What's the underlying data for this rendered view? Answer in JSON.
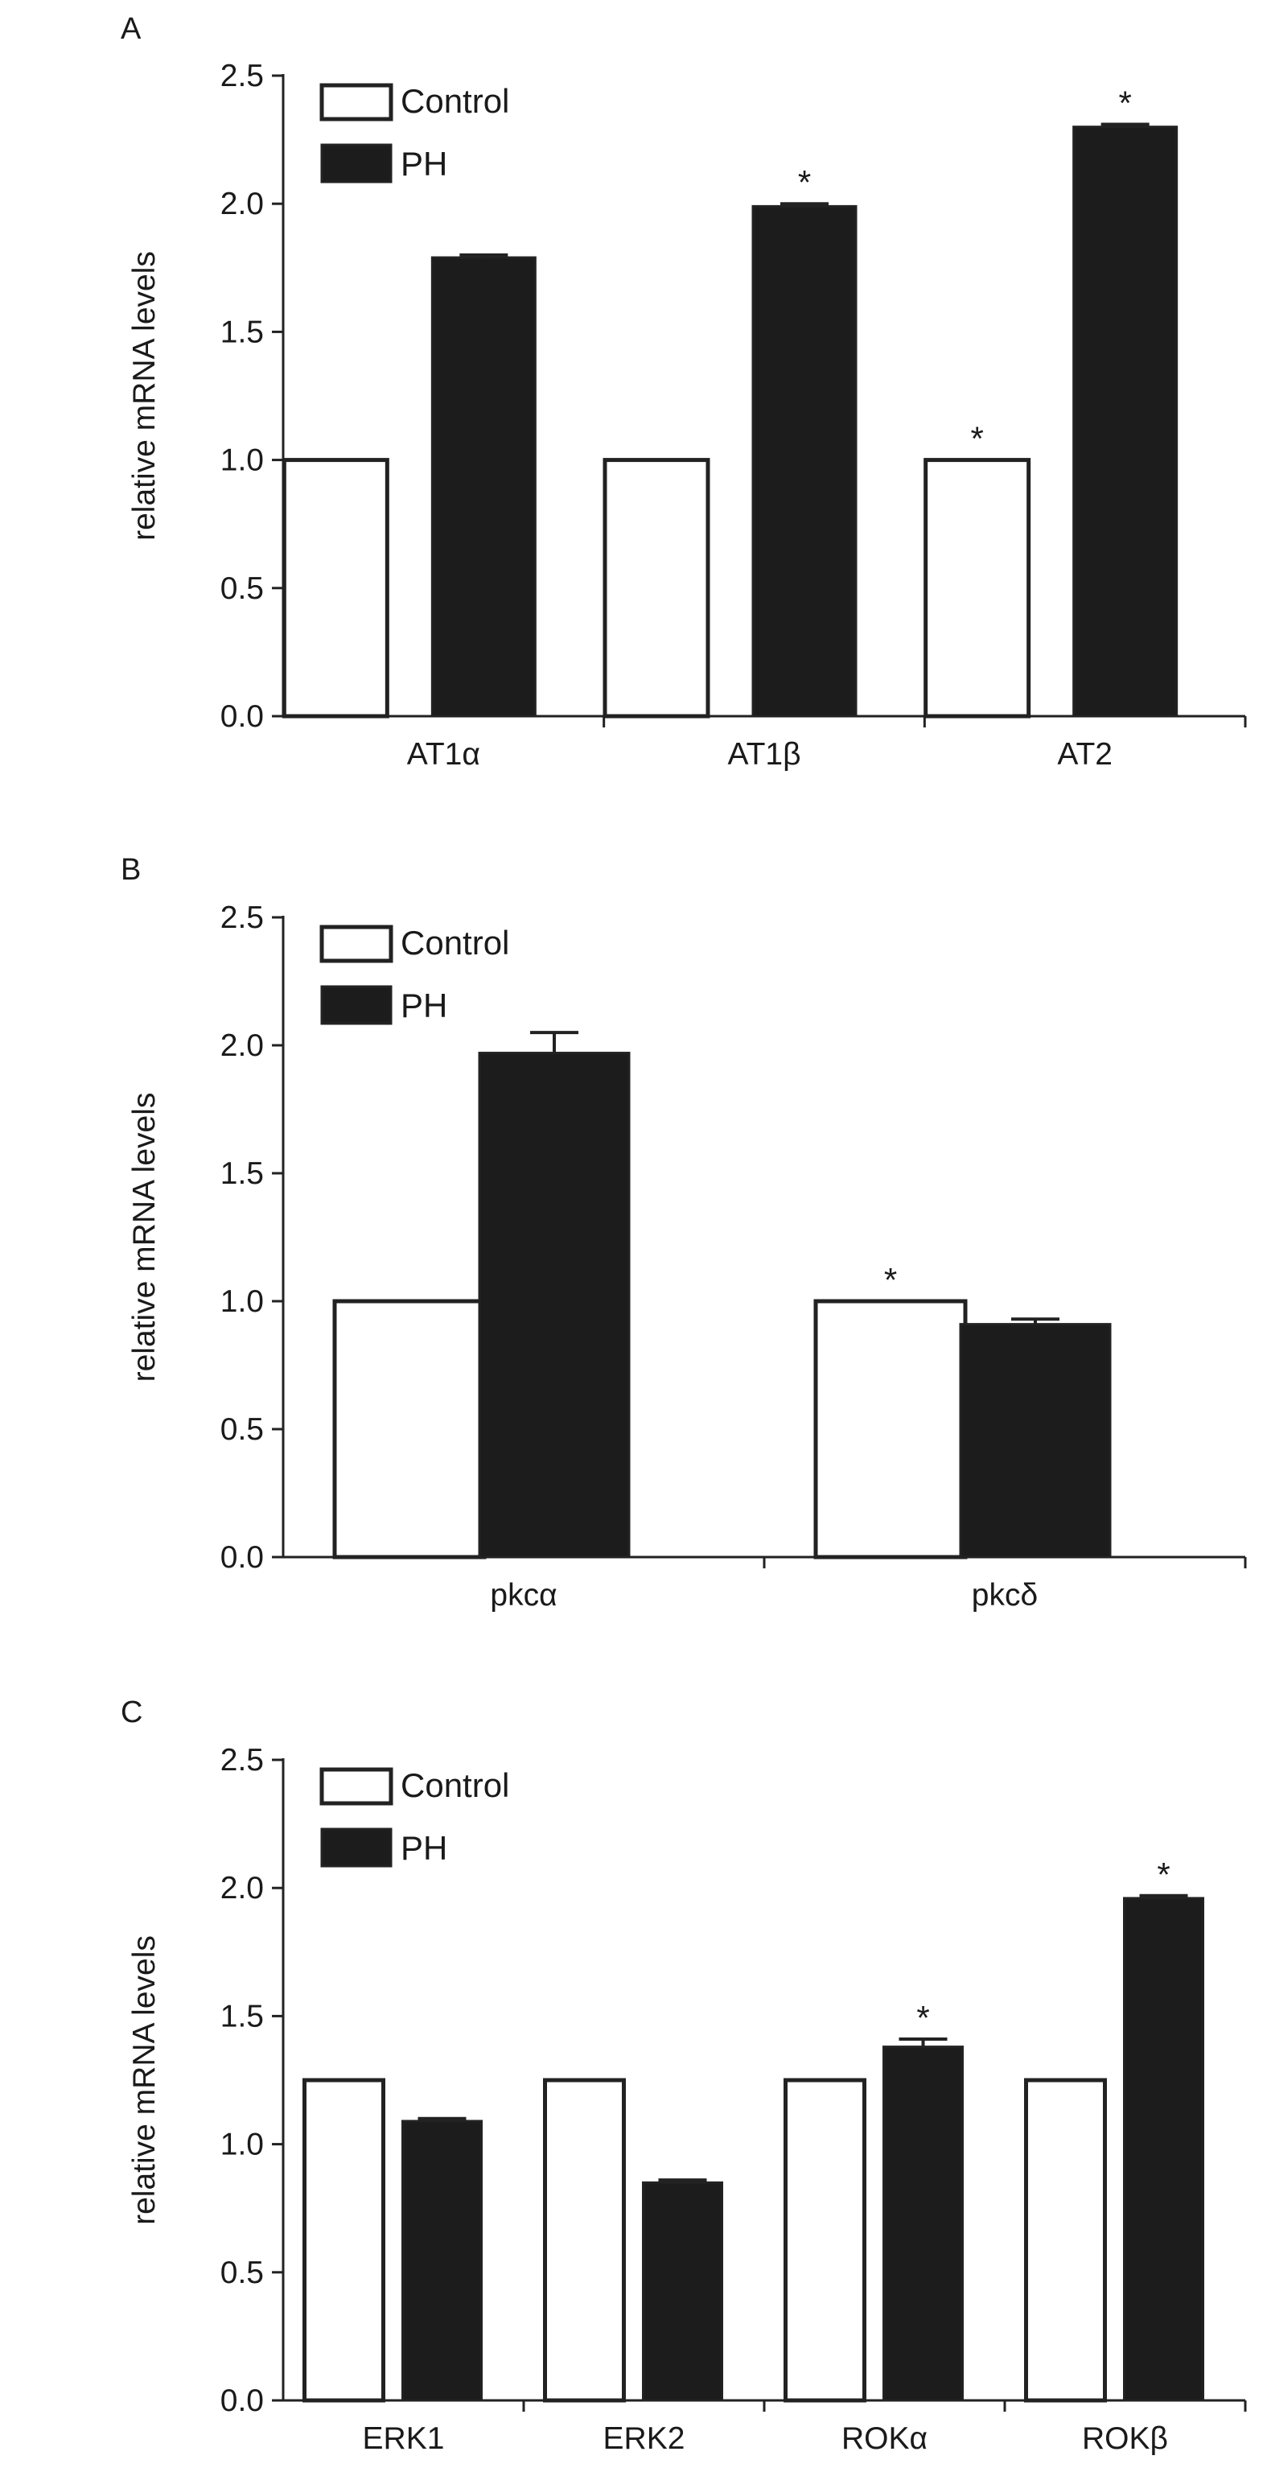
{
  "legend_labels": {
    "control": "Control",
    "ph": "PH"
  },
  "series_colors": {
    "control": "#ffffff",
    "ph": "#1c1c1c",
    "axis": "#222222"
  },
  "significance_marker": "*",
  "chart_data": [
    {
      "panel": "A",
      "type": "bar",
      "ylabel": "relative mRNA levels",
      "ylim": [
        0,
        2.5
      ],
      "yticks": [
        "0.0",
        "0.5",
        "1.0",
        "1.5",
        "2.0",
        "2.5"
      ],
      "legend": "top-left",
      "categories": [
        "AT1α",
        "AT1β",
        "AT2"
      ],
      "series": [
        {
          "name": "Control",
          "values": [
            1.0,
            1.0,
            1.0
          ],
          "errors": [
            0,
            0,
            0
          ]
        },
        {
          "name": "PH",
          "values": [
            1.79,
            1.99,
            2.3
          ],
          "errors": [
            0.01,
            0.01,
            0.01
          ]
        }
      ],
      "significant": [
        false,
        false,
        false,
        true,
        true,
        true
      ]
    },
    {
      "panel": "B",
      "type": "bar",
      "ylabel": "relative mRNA levels",
      "ylim": [
        0,
        2.5
      ],
      "yticks": [
        "0.0",
        "0.5",
        "1.0",
        "1.5",
        "2.0",
        "2.5"
      ],
      "legend": "top-left",
      "categories": [
        "pkcα",
        "pkcδ"
      ],
      "series": [
        {
          "name": "Control",
          "values": [
            1.0,
            1.0
          ],
          "errors": [
            0,
            0
          ]
        },
        {
          "name": "PH",
          "values": [
            1.97,
            0.91
          ],
          "errors": [
            0.08,
            0.02
          ]
        }
      ],
      "significant": [
        false,
        false,
        true,
        false
      ]
    },
    {
      "panel": "C",
      "type": "bar",
      "ylabel": "relative mRNA levels",
      "ylim": [
        0,
        2.5
      ],
      "yticks": [
        "0.0",
        "0.5",
        "1.0",
        "1.5",
        "2.0",
        "2.5"
      ],
      "legend": "top-left",
      "categories": [
        "ERK1",
        "ERK2",
        "ROKα",
        "ROKβ"
      ],
      "series": [
        {
          "name": "Control",
          "values": [
            1.25,
            1.25,
            1.25,
            1.25
          ],
          "errors": [
            0,
            0,
            0,
            0
          ]
        },
        {
          "name": "PH",
          "values": [
            1.09,
            0.85,
            1.38,
            1.96
          ],
          "errors": [
            0.01,
            0.01,
            0.03,
            0.01
          ]
        }
      ],
      "significant": [
        false,
        false,
        false,
        false,
        false,
        true,
        false,
        true
      ]
    }
  ]
}
